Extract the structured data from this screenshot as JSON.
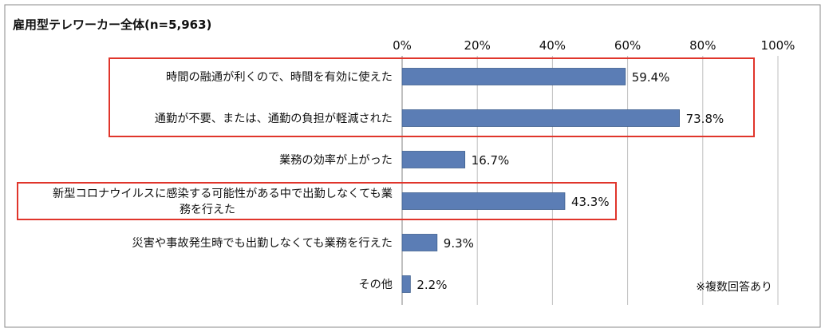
{
  "chart_data": {
    "type": "bar",
    "orientation": "horizontal",
    "title": "雇用型テレワーカー全体(n=5,963)",
    "categories": [
      [
        "時間の融通が利くので、時間を有効に使えた"
      ],
      [
        "通勤が不要、または、通勤の負担が軽減された"
      ],
      [
        "業務の効率が上がった"
      ],
      [
        "新型コロナウイルスに感染する可能性がある中で出勤しなくても業",
        "務を行えた"
      ],
      [
        "災害や事故発生時でも出勤しなくても業務を行えた"
      ],
      [
        "その他"
      ]
    ],
    "values": [
      59.4,
      73.8,
      16.7,
      43.3,
      9.3,
      2.2
    ],
    "value_labels": [
      "59.4%",
      "73.8%",
      "16.7%",
      "43.3%",
      "9.3%",
      "2.2%"
    ],
    "xlim": [
      0,
      100
    ],
    "ticks": [
      "0%",
      "20%",
      "40%",
      "60%",
      "80%",
      "100%"
    ],
    "note": "※複数回答あり",
    "highlighted": [
      [
        0,
        1
      ],
      [
        3,
        3
      ]
    ],
    "colors": {
      "bar": "#5b7db5",
      "bar_edge": "#40618f",
      "highlight": "#e0352b",
      "grid": "#bfbfbf",
      "border": "#888888"
    }
  }
}
